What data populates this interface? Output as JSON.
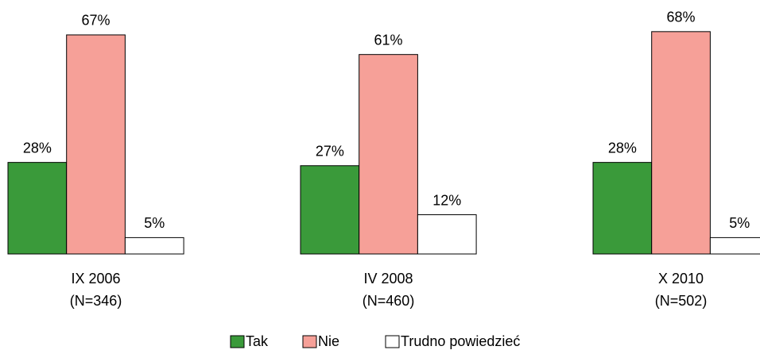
{
  "chart_data": {
    "type": "bar",
    "categories": [
      [
        "IX 2006",
        "(N=346)"
      ],
      [
        "IV 2008",
        "(N=460)"
      ],
      [
        "X 2010",
        "(N=502)"
      ]
    ],
    "series": [
      {
        "name": "Tak",
        "color": "#3a9a3a",
        "values": [
          28,
          27,
          28
        ],
        "value_labels": [
          "28%",
          "27%",
          "28%"
        ]
      },
      {
        "name": "Nie",
        "color": "#f6a098",
        "values": [
          67,
          61,
          68
        ],
        "value_labels": [
          "67%",
          "61%",
          "68%"
        ]
      },
      {
        "name": "Trudno powiedzieć",
        "color": "#ffffff",
        "values": [
          5,
          12,
          5
        ],
        "value_labels": [
          "5%",
          "12%",
          "5%"
        ]
      }
    ],
    "legend": "bottom"
  }
}
